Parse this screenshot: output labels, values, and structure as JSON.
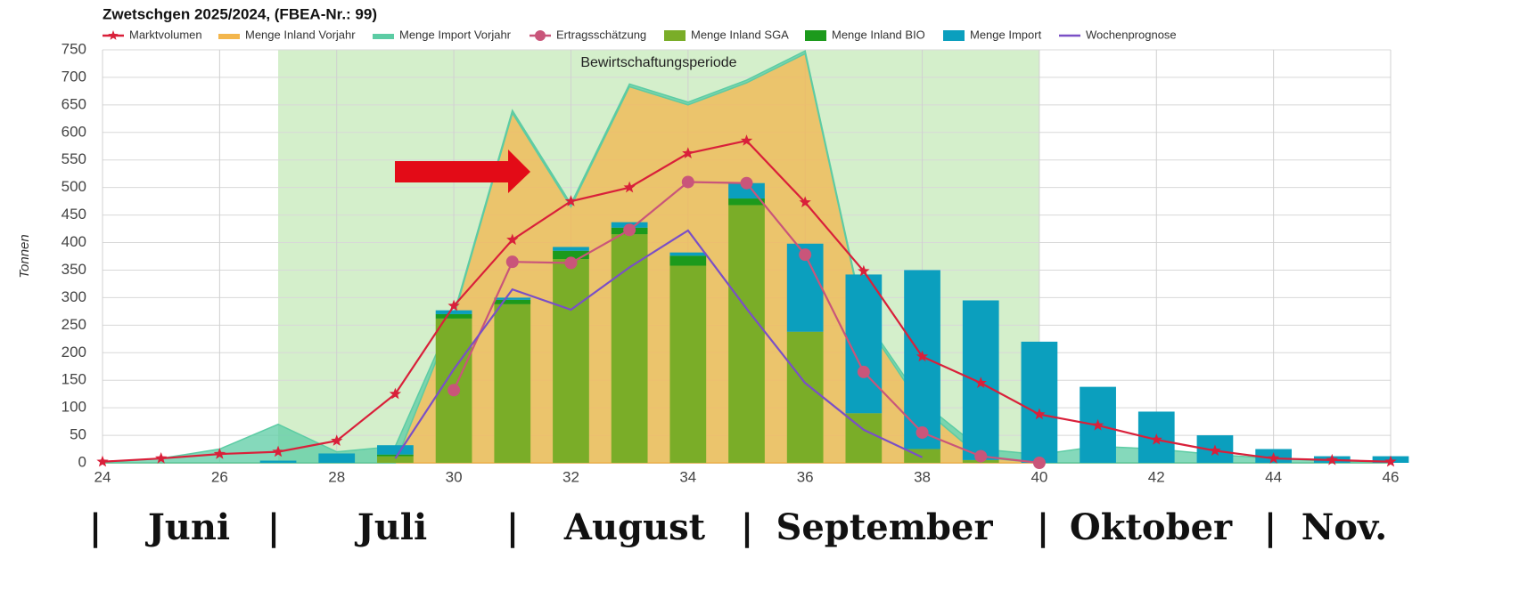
{
  "chart_data": {
    "type": "combo",
    "title": "Zwetschgen 2025/2024, (FBEA-Nr.: 99)",
    "y_label": "Tonnen",
    "band": {
      "label": "Bewirtschaftungsperiode",
      "from": 27,
      "to": 40,
      "color": "#d4efcb"
    },
    "x": [
      24,
      25,
      26,
      27,
      28,
      29,
      30,
      31,
      32,
      33,
      34,
      35,
      36,
      37,
      38,
      39,
      40,
      41,
      42,
      43,
      44,
      45,
      46
    ],
    "xlim": [
      24,
      46
    ],
    "xticks": [
      24,
      26,
      28,
      30,
      32,
      34,
      36,
      38,
      40,
      42,
      44,
      46
    ],
    "ylim": [
      0,
      750
    ],
    "yticks": [
      0,
      50,
      100,
      150,
      200,
      250,
      300,
      350,
      400,
      450,
      500,
      550,
      600,
      650,
      700,
      750
    ],
    "grid": true,
    "series": [
      {
        "name": "Marktvolumen",
        "kind": "line",
        "marker": "star",
        "color": "#d9203a",
        "values": [
          2,
          8,
          16,
          20,
          40,
          125,
          285,
          405,
          475,
          500,
          562,
          585,
          473,
          348,
          193,
          145,
          88,
          68,
          42,
          22,
          8,
          5,
          2
        ]
      },
      {
        "name": "Menge Inland Vorjahr",
        "kind": "area",
        "color": "#f3b64c",
        "values": [
          0,
          0,
          0,
          0,
          0,
          0,
          265,
          635,
          465,
          683,
          650,
          690,
          743,
          260,
          100,
          10,
          0,
          0,
          0,
          0,
          0,
          0,
          0
        ]
      },
      {
        "name": "Menge Import Vorjahr",
        "kind": "area",
        "color": "#5ccca4",
        "values": [
          0,
          8,
          25,
          70,
          20,
          30,
          5,
          5,
          5,
          5,
          5,
          5,
          5,
          5,
          10,
          15,
          15,
          30,
          25,
          15,
          8,
          3,
          0
        ]
      },
      {
        "name": "Ertragsschätzung",
        "kind": "line",
        "marker": "circle",
        "color": "#c9557a",
        "values": [
          null,
          null,
          null,
          null,
          null,
          null,
          132,
          365,
          363,
          423,
          510,
          508,
          378,
          165,
          55,
          12,
          0,
          null,
          null,
          null,
          null,
          null,
          null
        ]
      },
      {
        "name": "Menge Inland SGA",
        "kind": "bar",
        "color": "#7aad28",
        "values": [
          null,
          null,
          null,
          0,
          0,
          12,
          262,
          288,
          370,
          415,
          358,
          468,
          238,
          90,
          25,
          5,
          0,
          0,
          0,
          0,
          0,
          0,
          0
        ]
      },
      {
        "name": "Menge Inland BIO",
        "kind": "bar",
        "color": "#1c9a1c",
        "values": [
          null,
          null,
          null,
          0,
          0,
          3,
          8,
          8,
          15,
          12,
          18,
          12,
          0,
          0,
          0,
          0,
          0,
          0,
          0,
          0,
          0,
          0,
          0
        ]
      },
      {
        "name": "Menge Import",
        "kind": "bar",
        "color": "#0b9fbe",
        "values": [
          null,
          null,
          null,
          4,
          17,
          17,
          7,
          4,
          7,
          10,
          6,
          28,
          160,
          252,
          325,
          290,
          220,
          138,
          93,
          50,
          25,
          12,
          12
        ]
      },
      {
        "name": "Wochenprognose",
        "kind": "line",
        "marker": "none",
        "color": "#7a4fc6",
        "values": [
          null,
          null,
          null,
          null,
          null,
          8,
          170,
          315,
          278,
          355,
          422,
          280,
          145,
          60,
          10,
          null,
          null,
          null,
          null,
          null,
          null,
          null,
          null
        ]
      }
    ]
  },
  "month_labels": [
    "|",
    "Juni",
    "|",
    "Juli",
    "|",
    "August",
    "|",
    "September",
    "|",
    "Oktober",
    "|",
    "Nov."
  ]
}
